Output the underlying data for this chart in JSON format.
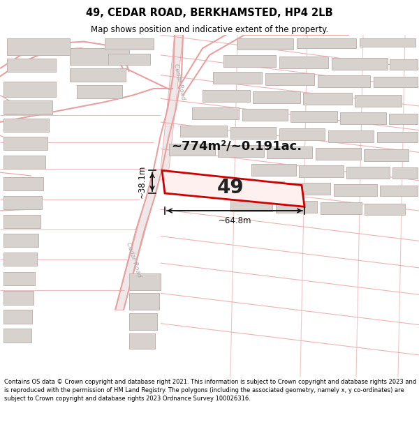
{
  "title_line1": "49, CEDAR ROAD, BERKHAMSTED, HP4 2LB",
  "title_line2": "Map shows position and indicative extent of the property.",
  "area_text": "~774m²/~0.191ac.",
  "label_49": "49",
  "dim_h": "~38.1m",
  "dim_w": "~64.8m",
  "footer": "Contains OS data © Crown copyright and database right 2021. This information is subject to Crown copyright and database rights 2023 and is reproduced with the permission of HM Land Registry. The polygons (including the associated geometry, namely x, y co-ordinates) are subject to Crown copyright and database rights 2023 Ordnance Survey 100026316.",
  "map_bg": "#f7f4f1",
  "road_line_color": "#e8a0a0",
  "road_fill_color": "#f0e8e8",
  "bldg_edge": "#c0b4b0",
  "bldg_fill": "#d8d2ce",
  "prop_edge": "#cc0000",
  "prop_fill": "#fff0f0",
  "title_bg": "#ffffff",
  "footer_bg": "#ffffff",
  "road_label_color": "#aaaaaa",
  "dim_color": "#111111",
  "area_color": "#111111"
}
